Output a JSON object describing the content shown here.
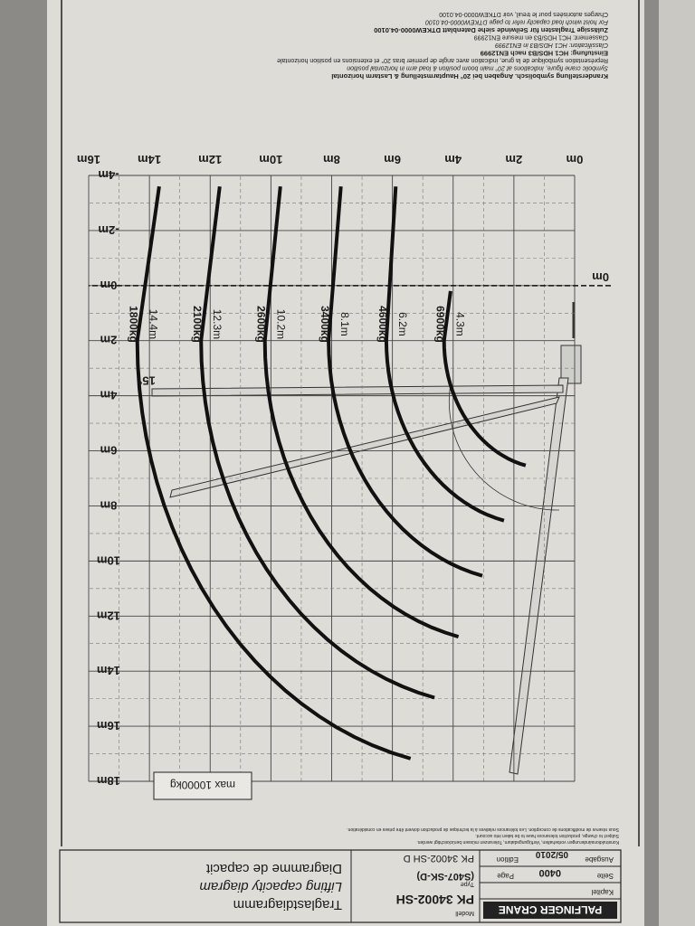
{
  "header": {
    "brand": "PALFINGER CRANE",
    "chapter_label": "Kapitel",
    "page_label": "Seite",
    "page_label_en": "Page",
    "page": "0400",
    "edition_label": "Ausgabe",
    "edition_label_en": "Edition",
    "edition": "05/2010",
    "model_label": "Modell",
    "model": "PK 34002-SH",
    "type_label": "Type",
    "type": "(S407-SK-D)",
    "model_full": "PK 34002-SH D",
    "title_de": "Traglastdiagramm",
    "title_en": "Lifting capacity diagram",
    "title_fr": "Diagramme de capacit"
  },
  "disclaimer": [
    "Konstruktionsänderungen vorbehalten, Verfügungsdatum, Toleranzen müssen berücksichtigt werden.",
    "Subject to change, production tolerances have to be taken into account.",
    "Sous réserve de modifications de conception. Les tolérances relatives à la technique de production doivent être prises en considération."
  ],
  "diagram": {
    "reach_ticks": [
      {
        "value": 0,
        "label": "0m"
      },
      {
        "value": 2,
        "label": "2m"
      },
      {
        "value": 4,
        "label": "4m"
      },
      {
        "value": 6,
        "label": "6m"
      },
      {
        "value": 8,
        "label": "8m"
      },
      {
        "value": 10,
        "label": "10m"
      },
      {
        "value": 12,
        "label": "12m"
      },
      {
        "value": 14,
        "label": "14m"
      },
      {
        "value": 16,
        "label": "16m"
      }
    ],
    "height_ticks": [
      {
        "value": -4,
        "label": "-4m"
      },
      {
        "value": -2,
        "label": "-2m"
      },
      {
        "value": 0,
        "label": "0m"
      },
      {
        "value": 2,
        "label": "2m"
      },
      {
        "value": 4,
        "label": "4m"
      },
      {
        "value": 6,
        "label": "6m"
      },
      {
        "value": 8,
        "label": "8m"
      },
      {
        "value": 10,
        "label": "10m"
      },
      {
        "value": 12,
        "label": "12m"
      },
      {
        "value": 14,
        "label": "14m"
      },
      {
        "value": 16,
        "label": "16m"
      },
      {
        "value": 18,
        "label": "18m"
      }
    ],
    "zero_line_label": {
      "value": 0,
      "label": "0m"
    },
    "max_load": "max 10000kg",
    "angle_label": "15°",
    "curves": [
      {
        "load": "6900kg",
        "reach": {
          "value": 4.3,
          "label": "4.3m"
        }
      },
      {
        "load": "4600kg",
        "reach": {
          "value": 6.2,
          "label": "6.2m"
        }
      },
      {
        "load": "3400kg",
        "reach": {
          "value": 8.1,
          "label": "8.1m"
        }
      },
      {
        "load": "2600kg",
        "reach": {
          "value": 10.2,
          "label": "10.2m"
        }
      },
      {
        "load": "2100kg",
        "reach": {
          "value": 12.3,
          "label": "12.3m"
        }
      },
      {
        "load": "1800kg",
        "reach": {
          "value": 14.4,
          "label": "14.4m"
        }
      }
    ]
  },
  "notes": [
    "Kranderstellung symbolisch. Angaben bei 20° Hauptarmstellung & Lastarm horizontal",
    "Symbolic crane figure, indications at 20° main boom position & load arm in horizontal position",
    "Représentation symbolique de la grue, indication avec angle de premier bras 20° et extensions en position horizontale",
    "Einstufung: HC1 HDS/B3 nach EN12999",
    "Classification: HC1 HDS/B3 in EN12999",
    "Classement: HC1 HDS/B3 en mesure EN12999",
    "Zulässige Traglasten für Seilwinde siehe Datenblatt DTKEW0000-04.0100",
    "For hoist winch load capacity refer to page DTKEW0000-04.0100",
    "Charges autorisées pour le treuil, voir DTKEW0000-04.0100"
  ]
}
